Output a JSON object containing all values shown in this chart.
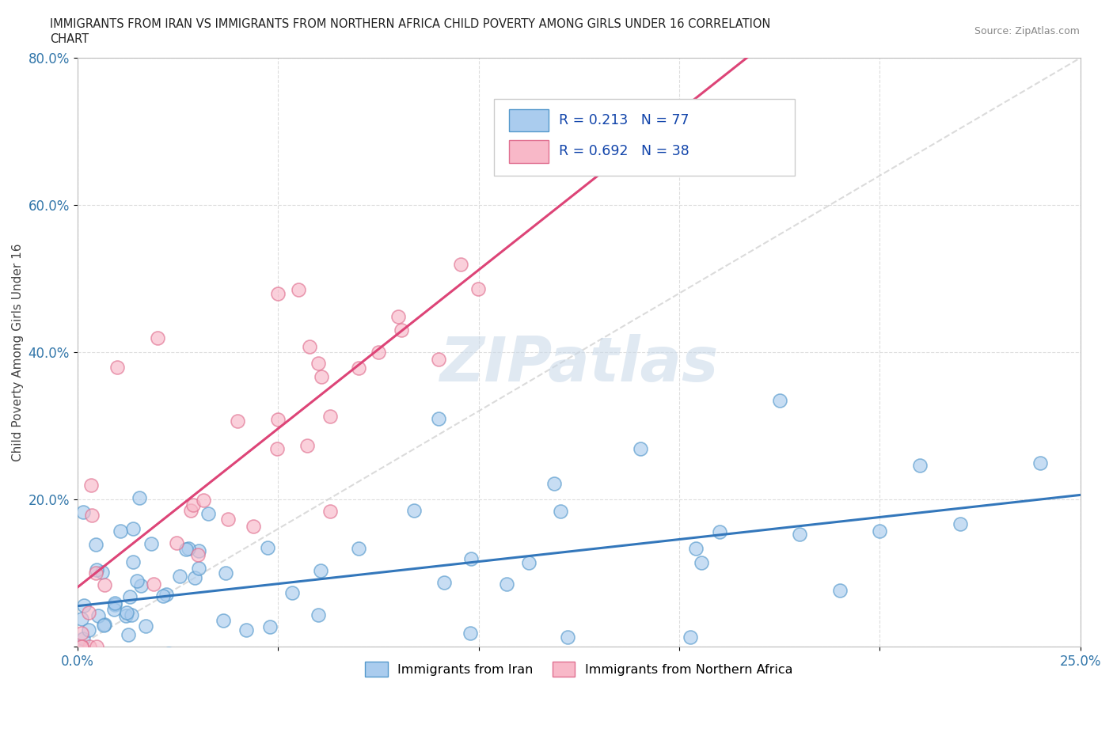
{
  "title_line1": "IMMIGRANTS FROM IRAN VS IMMIGRANTS FROM NORTHERN AFRICA CHILD POVERTY AMONG GIRLS UNDER 16 CORRELATION",
  "title_line2": "CHART",
  "source": "Source: ZipAtlas.com",
  "ylabel": "Child Poverty Among Girls Under 16",
  "x_min": 0.0,
  "x_max": 0.25,
  "y_min": 0.0,
  "y_max": 0.8,
  "x_ticks": [
    0.0,
    0.05,
    0.1,
    0.15,
    0.2,
    0.25
  ],
  "x_tick_labels": [
    "0.0%",
    "",
    "",
    "",
    "",
    "25.0%"
  ],
  "y_ticks": [
    0.0,
    0.2,
    0.4,
    0.6,
    0.8
  ],
  "y_tick_labels": [
    "",
    "20.0%",
    "40.0%",
    "60.0%",
    "80.0%"
  ],
  "iran_color": "#aaccee",
  "iran_edge_color": "#5599cc",
  "iran_line_color": "#3377bb",
  "northern_africa_color": "#f8b8c8",
  "northern_africa_edge_color": "#e07090",
  "northern_africa_line_color": "#dd4477",
  "diagonal_color": "#cccccc",
  "R_iran": 0.213,
  "N_iran": 77,
  "R_nafrica": 0.692,
  "N_nafrica": 38,
  "watermark": "ZIPatlas",
  "legend_label_iran": "Immigrants from Iran",
  "legend_label_nafrica": "Immigrants from Northern Africa"
}
